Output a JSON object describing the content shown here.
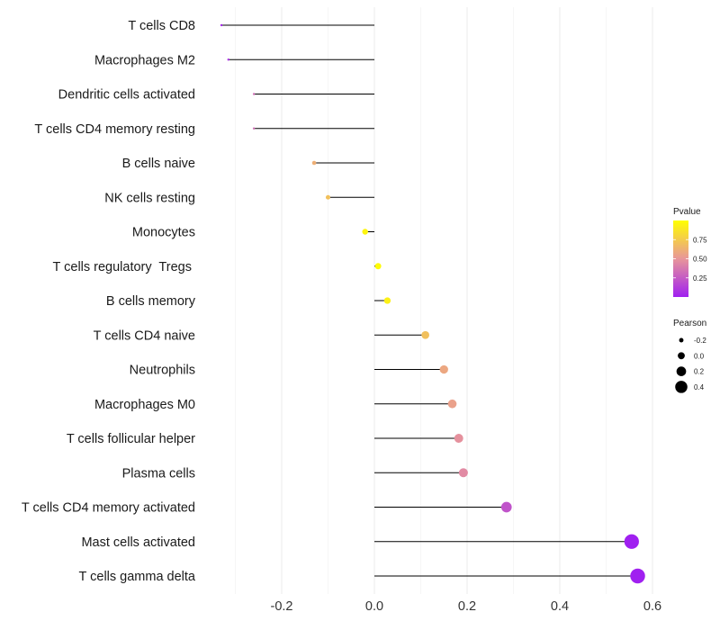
{
  "chart_data": {
    "type": "lollipop",
    "title": "",
    "xlabel": "",
    "ylabel": "",
    "xlim": [
      -0.34,
      0.6
    ],
    "xticks": [
      -0.2,
      0.0,
      0.2,
      0.4,
      0.6
    ],
    "xtick_labels": [
      "-0.2",
      "0.0",
      "0.2",
      "0.4",
      "0.6"
    ],
    "categories": [
      "T cells CD8",
      "Macrophages M2",
      "Dendritic cells activated",
      "T cells CD4 memory resting",
      "B cells naive",
      "NK cells resting",
      "Monocytes",
      "T cells regulatory  Tregs ",
      "B cells memory",
      "T cells CD4 naive",
      "Neutrophils",
      "Macrophages M0",
      "T cells follicular helper",
      "Plasma cells",
      "T cells CD4 memory activated",
      "Mast cells activated",
      "T cells gamma delta"
    ],
    "values": [
      -0.33,
      -0.315,
      -0.26,
      -0.26,
      -0.13,
      -0.1,
      -0.02,
      0.008,
      0.028,
      0.11,
      0.15,
      0.168,
      0.182,
      0.192,
      0.285,
      0.555,
      0.568
    ],
    "pvalues": [
      0.03,
      0.07,
      0.33,
      0.34,
      0.62,
      0.7,
      0.95,
      0.98,
      0.93,
      0.7,
      0.58,
      0.55,
      0.48,
      0.45,
      0.22,
      0.0,
      0.0
    ],
    "legend": {
      "color": {
        "title": "Pvalue",
        "ticks": [
          0.25,
          0.5,
          0.75
        ],
        "tick_labels": [
          "0.25",
          "0.50",
          "0.75"
        ],
        "range": [
          0.0,
          1.0
        ],
        "low_color": "#a020f0",
        "mid_color": "#e8969a",
        "high_color": "#ffff00"
      },
      "size": {
        "title": "Pearson",
        "values": [
          -0.2,
          0.0,
          0.2,
          0.4
        ],
        "labels": [
          "-0.2",
          "0.0",
          "0.2",
          "0.4"
        ]
      },
      "position": "right"
    }
  }
}
